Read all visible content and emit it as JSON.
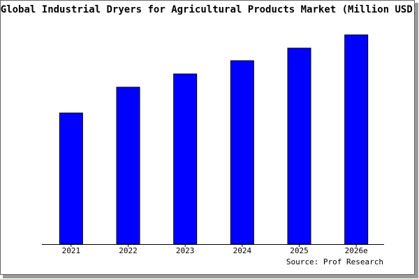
{
  "chart_data": {
    "type": "bar",
    "title": "Global Industrial Dryers for Agricultural Products Market (Million USD)",
    "categories": [
      "2021",
      "2022",
      "2023",
      "2024",
      "2025",
      "2026e"
    ],
    "values": [
      188,
      225,
      244,
      263,
      281,
      300
    ],
    "color": "#0000ff",
    "ylim": [
      0,
      300
    ],
    "source": "Source: Prof Research"
  }
}
